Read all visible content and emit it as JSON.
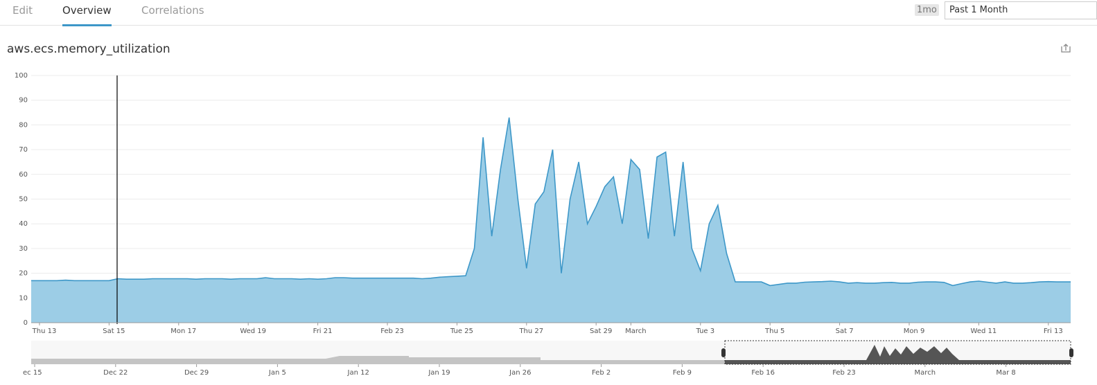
{
  "tabs": [
    "Edit",
    "Overview",
    "Correlations"
  ],
  "time_badge": "1mo",
  "time_range": "Past 1 Month",
  "chart_data": {
    "type": "area",
    "title": "aws.ecs.memory_utilization",
    "color": "#3d97c8",
    "fill": "#9ccde6",
    "grid": true,
    "ylim": [
      0,
      100
    ],
    "yticks": [
      0,
      10,
      20,
      30,
      40,
      50,
      60,
      70,
      80,
      90,
      100
    ],
    "categories": [
      "Thu 13",
      null,
      null,
      null,
      null,
      null,
      null,
      null,
      "Sat 15",
      null,
      null,
      null,
      null,
      null,
      null,
      null,
      "Mon 17",
      null,
      null,
      null,
      null,
      null,
      null,
      null,
      "Wed 19",
      null,
      null,
      null,
      null,
      null,
      null,
      null,
      "Fri 21",
      null,
      null,
      null,
      null,
      null,
      null,
      null,
      "Feb 23",
      null,
      null,
      null,
      null,
      null,
      null,
      null,
      "Tue 25",
      null,
      null,
      null,
      null,
      null,
      null,
      null,
      "Thu 27",
      null,
      null,
      null,
      null,
      null,
      null,
      null,
      "Sat 29",
      null,
      null,
      null,
      "March",
      null,
      null,
      null,
      null,
      null,
      null,
      null,
      "Tue 3",
      null,
      null,
      null,
      null,
      null,
      null,
      null,
      "Thu 5",
      null,
      null,
      null,
      null,
      null,
      null,
      null,
      "Sat 7",
      null,
      null,
      null,
      null,
      null,
      null,
      null,
      "Mon 9",
      null,
      null,
      null,
      null,
      null,
      null,
      null,
      "Wed 11",
      null,
      null,
      null,
      null,
      null,
      null,
      null,
      "Fri 13",
      null,
      null
    ],
    "values": [
      17,
      17,
      17,
      17.2,
      17,
      17,
      17,
      17,
      17,
      17.8,
      17.6,
      17.6,
      17.6,
      17.8,
      17.8,
      17.8,
      17.8,
      17.8,
      17.6,
      17.8,
      17.8,
      17.8,
      17.6,
      17.8,
      17.8,
      17.8,
      18.2,
      17.8,
      17.8,
      17.8,
      17.6,
      17.8,
      17.6,
      17.8,
      18.2,
      18.2,
      18,
      18,
      18,
      18,
      18,
      18,
      18,
      18,
      17.8,
      18,
      18.4,
      18.6,
      18.8,
      19,
      30,
      75,
      35,
      62,
      83,
      50,
      22,
      48,
      53,
      70,
      20,
      50,
      65,
      40,
      47,
      55,
      59,
      40,
      66,
      62,
      34,
      67,
      69,
      35,
      65,
      30,
      21,
      40,
      47.5,
      28,
      16.5,
      16.5,
      16.5,
      16.5,
      15,
      15.5,
      16,
      16,
      16.4,
      16.5,
      16.6,
      16.8,
      16.5,
      16,
      16.2,
      16,
      16,
      16.2,
      16.3,
      16,
      16,
      16.4,
      16.5,
      16.5,
      16.3,
      15,
      15.8,
      16.5,
      16.8,
      16.4,
      16,
      16.5,
      16,
      16,
      16.2,
      16.5,
      16.6,
      16.5,
      16.5
    ]
  },
  "navigator": {
    "labels": [
      "ec 15",
      "Dec 22",
      "Dec 29",
      "Jan 5",
      "Jan 12",
      "Jan 19",
      "Jan 26",
      "Feb 2",
      "Feb 9",
      "Feb 16",
      "Feb 23",
      "March",
      "Mar 8"
    ]
  }
}
